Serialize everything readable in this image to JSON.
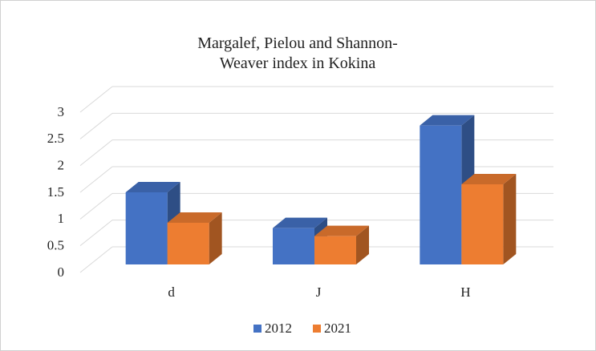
{
  "chart_data": {
    "type": "bar3d",
    "title": "Margalef, Pielou and Shannon-Weaver index in Kokina",
    "categories": [
      "d",
      "J",
      "H"
    ],
    "series": [
      {
        "name": "2012",
        "color": "#4472c4",
        "values": [
          1.35,
          0.68,
          2.6
        ]
      },
      {
        "name": "2021",
        "color": "#ed7d31",
        "values": [
          0.78,
          0.53,
          1.5
        ]
      }
    ],
    "ylim": [
      0,
      3
    ],
    "yticks": [
      0,
      0.5,
      1,
      1.5,
      2,
      2.5,
      3
    ],
    "grid": true,
    "legend": "bottom"
  }
}
